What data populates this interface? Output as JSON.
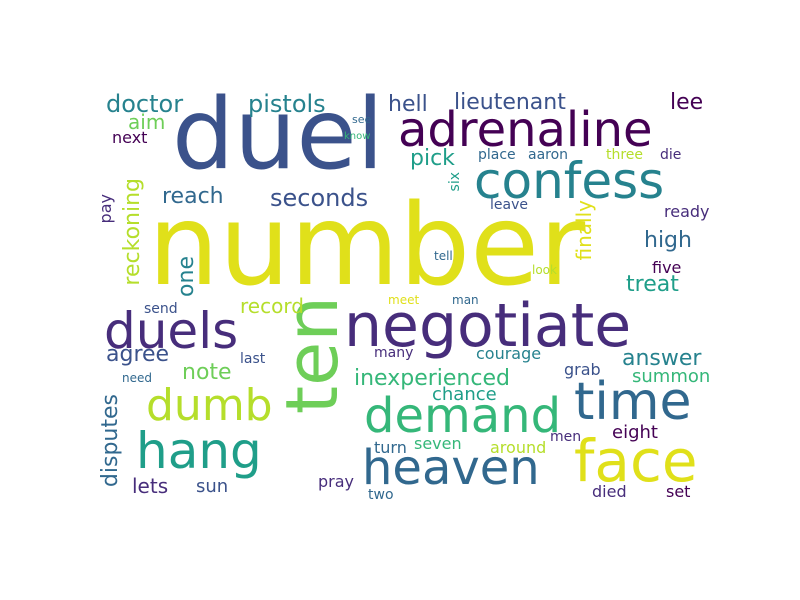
{
  "cloud": {
    "palette": {
      "dark_purple": "#440154",
      "indigo": "#472d7b",
      "blue": "#3b528b",
      "steel": "#31688e",
      "teal_blue": "#26828e",
      "teal": "#1f9e89",
      "green_teal": "#35b779",
      "green": "#6ece58",
      "lime": "#b5de2b",
      "yellow": "#e0e01a"
    },
    "words": [
      {
        "text": "number",
        "color": "#e0e01a"
      },
      {
        "text": "duel",
        "color": "#3b528b"
      },
      {
        "text": "ten",
        "color": "#6ece58"
      },
      {
        "text": "negotiate",
        "color": "#472d7b"
      },
      {
        "text": "adrenaline",
        "color": "#440154"
      },
      {
        "text": "confess",
        "color": "#26828e"
      },
      {
        "text": "duels",
        "color": "#472d7b"
      },
      {
        "text": "face",
        "color": "#e0e01a"
      },
      {
        "text": "heaven",
        "color": "#31688e"
      },
      {
        "text": "demand",
        "color": "#35b779"
      },
      {
        "text": "time",
        "color": "#31688e"
      },
      {
        "text": "hang",
        "color": "#1f9e89"
      },
      {
        "text": "dumb",
        "color": "#b5de2b"
      },
      {
        "text": "pistols",
        "color": "#26828e"
      },
      {
        "text": "doctor",
        "color": "#26828e"
      },
      {
        "text": "lieutenant",
        "color": "#3b528b"
      },
      {
        "text": "hell",
        "color": "#3b528b"
      },
      {
        "text": "lee",
        "color": "#440154"
      },
      {
        "text": "seconds",
        "color": "#3b528b"
      },
      {
        "text": "reach",
        "color": "#31688e"
      },
      {
        "text": "high",
        "color": "#31688e"
      },
      {
        "text": "treat",
        "color": "#1f9e89"
      },
      {
        "text": "inexperienced",
        "color": "#35b779"
      },
      {
        "text": "answer",
        "color": "#26828e"
      },
      {
        "text": "reckoning",
        "color": "#b5de2b"
      },
      {
        "text": "disputes",
        "color": "#31688e"
      },
      {
        "text": "pick",
        "color": "#1f9e89"
      },
      {
        "text": "aim",
        "color": "#6ece58"
      },
      {
        "text": "next",
        "color": "#440154"
      },
      {
        "text": "pay",
        "color": "#472d7b"
      },
      {
        "text": "one",
        "color": "#26828e"
      },
      {
        "text": "record",
        "color": "#b5de2b"
      },
      {
        "text": "agree",
        "color": "#3b528b"
      },
      {
        "text": "note",
        "color": "#6ece58"
      },
      {
        "text": "send",
        "color": "#3b528b"
      },
      {
        "text": "chance",
        "color": "#1f9e89"
      },
      {
        "text": "summon",
        "color": "#35b779"
      },
      {
        "text": "eight",
        "color": "#440154"
      },
      {
        "text": "lets",
        "color": "#472d7b"
      },
      {
        "text": "sun",
        "color": "#3b528b"
      },
      {
        "text": "finally",
        "color": "#e0e01a"
      },
      {
        "text": "courage",
        "color": "#26828e"
      },
      {
        "text": "grab",
        "color": "#3b528b"
      },
      {
        "text": "five",
        "color": "#440154"
      },
      {
        "text": "ready",
        "color": "#472d7b"
      },
      {
        "text": "leave",
        "color": "#3b528b"
      },
      {
        "text": "place",
        "color": "#31688e"
      },
      {
        "text": "aaron",
        "color": "#31688e"
      },
      {
        "text": "three",
        "color": "#b5de2b"
      },
      {
        "text": "die",
        "color": "#472d7b"
      },
      {
        "text": "six",
        "color": "#1f9e89"
      },
      {
        "text": "see",
        "color": "#31688e"
      },
      {
        "text": "know",
        "color": "#35b779"
      },
      {
        "text": "tell",
        "color": "#31688e"
      },
      {
        "text": "look",
        "color": "#b5de2b"
      },
      {
        "text": "meet",
        "color": "#e0e01a"
      },
      {
        "text": "man",
        "color": "#31688e"
      },
      {
        "text": "many",
        "color": "#472d7b"
      },
      {
        "text": "last",
        "color": "#3b528b"
      },
      {
        "text": "need",
        "color": "#31688e"
      },
      {
        "text": "seven",
        "color": "#35b779"
      },
      {
        "text": "around",
        "color": "#b5de2b"
      },
      {
        "text": "men",
        "color": "#472d7b"
      },
      {
        "text": "turn",
        "color": "#31688e"
      },
      {
        "text": "pray",
        "color": "#472d7b"
      },
      {
        "text": "two",
        "color": "#31688e"
      },
      {
        "text": "died",
        "color": "#472d7b"
      },
      {
        "text": "set",
        "color": "#440154"
      }
    ]
  }
}
